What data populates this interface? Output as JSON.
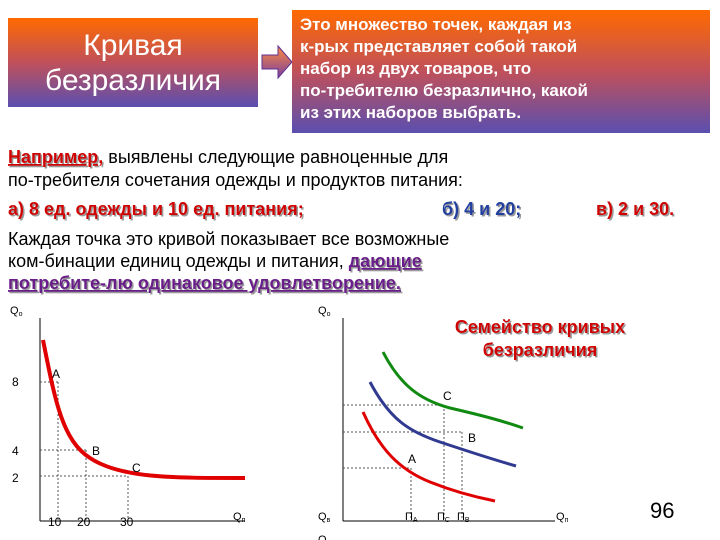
{
  "header": {
    "title_lines": [
      "Кривая",
      "безразличия"
    ],
    "definition_lines": [
      "Это множество точек, каждая из",
      "к-рых представляет собой такой",
      "набор из двух товаров, что",
      "по-требителю безразлично, какой",
      "из этих  наборов выбрать."
    ]
  },
  "body": {
    "line1_lead": "Например,",
    "line1_rest": " выявлены следующие равноценные для",
    "line2": "по-требителя сочетания одежды и продуктов питания:",
    "option_a": "а) 8 ед. одежды и 10 ед. питания;",
    "option_b": "б) 4 и 20;",
    "option_c": "в) 2 и 30.",
    "line4": "Каждая точка это кривой показывает все возможные",
    "line5_rest": "ком-бинации единиц одежды и питания, ",
    "line5_emph": "дающие",
    "line6_emph": "потребите-лю одинаковое удовлетворение."
  },
  "left_chart": {
    "y_axis": {
      "main": "Q",
      "sub": "о"
    },
    "x_axis": {
      "main": "Q",
      "sub": "п"
    },
    "yticks": [
      "8",
      "4",
      "2"
    ],
    "xticks": [
      "10",
      "20",
      "30"
    ],
    "points": [
      "A",
      "B",
      "C"
    ]
  },
  "right_chart": {
    "title_lines": [
      "Семейство кривых",
      "безразличия"
    ],
    "y_axis": {
      "main": "Q",
      "sub": "о"
    },
    "x_axis": {
      "main": "Q",
      "sub": "п"
    },
    "bottom_left": {
      "main": "Q",
      "sub": "в"
    },
    "bottom_cut": "Q",
    "xticks": [
      {
        "main": "П",
        "sub": "А"
      },
      {
        "main": "П",
        "sub": "С"
      },
      {
        "main": "П",
        "sub": "В"
      }
    ],
    "points": [
      "C",
      "B",
      "A"
    ]
  },
  "page_number": "96"
}
